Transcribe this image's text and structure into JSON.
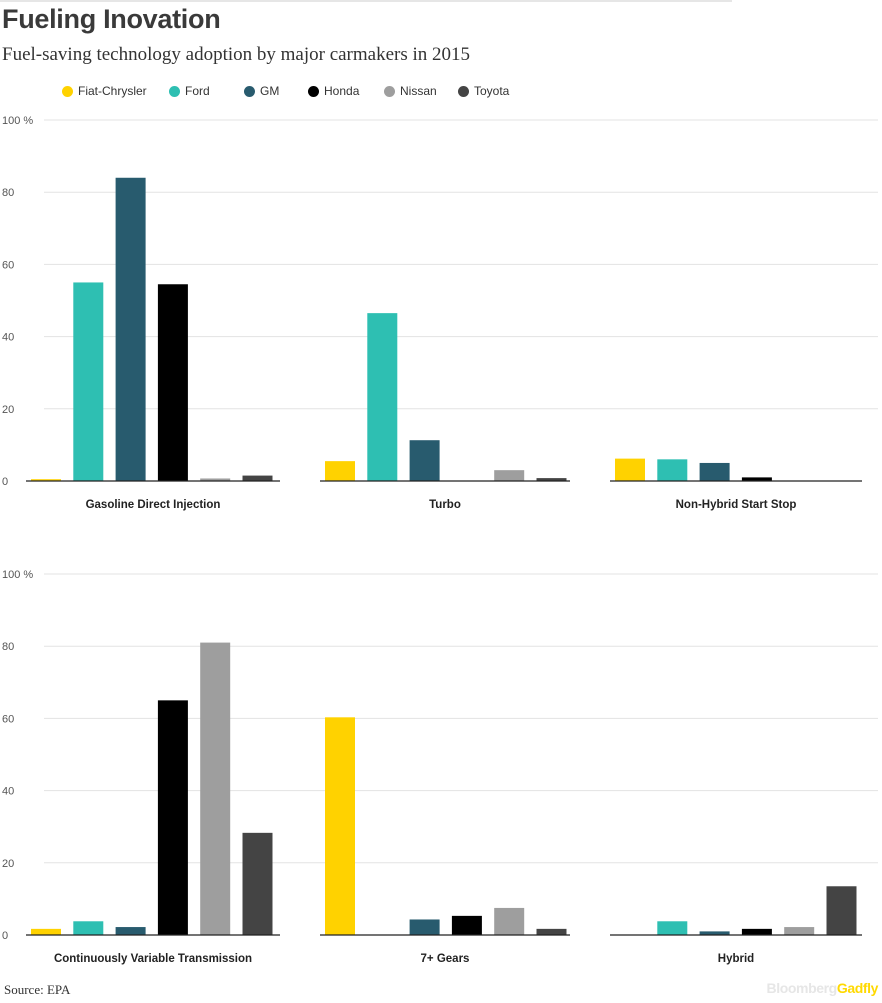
{
  "title": "Fueling Inovation",
  "subtitle": "Fuel-saving technology adoption by major carmakers in 2015",
  "source": "Source: EPA",
  "brand": {
    "part1": "Bloomberg",
    "part2": "Gadfly"
  },
  "legend": [
    {
      "name": "Fiat-Chrysler",
      "color": "#ffd200"
    },
    {
      "name": "Ford",
      "color": "#2ebfb2"
    },
    {
      "name": "GM",
      "color": "#285b6e"
    },
    {
      "name": "Honda",
      "color": "#000000"
    },
    {
      "name": "Nissan",
      "color": "#9e9e9e"
    },
    {
      "name": "Toyota",
      "color": "#444444"
    }
  ],
  "chart_data": {
    "type": "bar",
    "ylim": [
      0,
      100
    ],
    "yticks": [
      "100 %",
      "80",
      "60",
      "40",
      "20",
      "0"
    ],
    "grid": true,
    "legend_position": "top",
    "series_names": [
      "Fiat-Chrysler",
      "Ford",
      "GM",
      "Honda",
      "Nissan",
      "Toyota"
    ],
    "panels": [
      {
        "category": "Gasoline Direct Injection",
        "values": [
          0.5,
          55,
          84,
          54.5,
          0.7,
          1.5
        ]
      },
      {
        "category": "Turbo",
        "values": [
          5.5,
          46.5,
          11.3,
          0,
          3,
          0.8
        ]
      },
      {
        "category": "Non-Hybrid Start Stop",
        "values": [
          6.2,
          6,
          5,
          1,
          0,
          0
        ]
      },
      {
        "category": "Continuously Variable Transmission",
        "values": [
          1.7,
          3.8,
          2.2,
          65,
          81,
          28.3
        ]
      },
      {
        "category": "7+ Gears",
        "values": [
          60.3,
          0,
          4.3,
          5.3,
          7.5,
          1.7
        ]
      },
      {
        "category": "Hybrid",
        "values": [
          0,
          3.8,
          1,
          1.7,
          2.2,
          13.5
        ]
      }
    ]
  }
}
